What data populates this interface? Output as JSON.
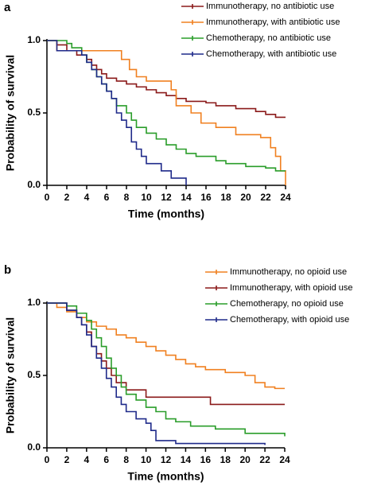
{
  "chart_data": [
    {
      "type": "step",
      "panel_label": "a",
      "xlabel": "Time  (months)",
      "ylabel": "Probability of survival",
      "xlim": [
        0,
        24
      ],
      "ylim": [
        0,
        1
      ],
      "xticks": [
        0,
        2,
        4,
        6,
        8,
        10,
        12,
        14,
        16,
        18,
        20,
        22,
        24
      ],
      "yticks": [
        {
          "value": 0,
          "label": "0.0"
        },
        0.5,
        {
          "value": 1,
          "label": "1.0"
        }
      ],
      "legend": "top-right",
      "series": [
        {
          "name": "Immunotherapy, no antibiotic use",
          "color": "#8b1a1a",
          "x": [
            0,
            1,
            2,
            3,
            4,
            4.5,
            5,
            5.5,
            6,
            7,
            8,
            9,
            10,
            11,
            12,
            13,
            14,
            16,
            17,
            19,
            21,
            22,
            23,
            24
          ],
          "values": [
            1,
            0.97,
            0.93,
            0.9,
            0.87,
            0.83,
            0.8,
            0.77,
            0.74,
            0.72,
            0.7,
            0.68,
            0.66,
            0.64,
            0.62,
            0.6,
            0.58,
            0.57,
            0.55,
            0.53,
            0.51,
            0.49,
            0.47,
            0.47
          ]
        },
        {
          "name": "Immunotherapy, with antibiotic use",
          "color": "#f08020",
          "x": [
            0,
            1,
            7.5,
            8.3,
            9,
            10,
            12.5,
            13,
            14.5,
            15.5,
            17,
            19,
            21.5,
            22.5,
            23,
            23.5,
            24
          ],
          "values": [
            1,
            0.93,
            0.87,
            0.8,
            0.75,
            0.72,
            0.66,
            0.55,
            0.5,
            0.43,
            0.4,
            0.35,
            0.33,
            0.26,
            0.2,
            0.1,
            0
          ]
        },
        {
          "name": "Chemotherapy, no antibiotic use",
          "color": "#2a9d2a",
          "x": [
            0,
            2,
            2.5,
            3.5,
            4,
            4.5,
            5,
            5.5,
            6,
            6.5,
            7,
            8,
            8.5,
            9,
            10,
            11,
            12,
            13,
            14,
            15,
            17,
            18,
            20,
            22,
            23,
            24
          ],
          "values": [
            1,
            0.98,
            0.95,
            0.9,
            0.85,
            0.8,
            0.75,
            0.7,
            0.65,
            0.6,
            0.55,
            0.5,
            0.45,
            0.4,
            0.36,
            0.32,
            0.28,
            0.25,
            0.22,
            0.2,
            0.17,
            0.15,
            0.13,
            0.12,
            0.1,
            0.1
          ]
        },
        {
          "name": "Chemotherapy, with antibiotic use",
          "color": "#1f2a8a",
          "x": [
            0,
            1,
            3.5,
            4,
            4.5,
            5,
            5.5,
            6,
            6.5,
            7,
            7.5,
            8,
            8.5,
            9,
            9.5,
            10,
            11.5,
            12.5,
            14
          ],
          "values": [
            1,
            0.93,
            0.9,
            0.85,
            0.8,
            0.75,
            0.7,
            0.65,
            0.6,
            0.5,
            0.45,
            0.4,
            0.3,
            0.25,
            0.2,
            0.15,
            0.1,
            0.05,
            0
          ]
        }
      ]
    },
    {
      "type": "step",
      "panel_label": "b",
      "xlabel": "Time  (months)",
      "ylabel": "Probability of survival",
      "xlim": [
        0,
        24
      ],
      "ylim": [
        0,
        1
      ],
      "xticks": [
        0,
        2,
        4,
        6,
        8,
        10,
        12,
        14,
        16,
        18,
        20,
        22,
        24
      ],
      "yticks": [
        {
          "value": 0,
          "label": "0.0"
        },
        0.5,
        {
          "value": 1,
          "label": "1.0"
        }
      ],
      "legend": "top-right",
      "series": [
        {
          "name": "Immunotherapy,  no opioid use",
          "color": "#f08020",
          "x": [
            0,
            1,
            2,
            3,
            4,
            5,
            6,
            7,
            8,
            9,
            10,
            11,
            12,
            13,
            14,
            15,
            16,
            18,
            20,
            21,
            22,
            23,
            24
          ],
          "values": [
            1,
            0.97,
            0.94,
            0.9,
            0.87,
            0.84,
            0.82,
            0.78,
            0.76,
            0.73,
            0.7,
            0.67,
            0.64,
            0.61,
            0.58,
            0.56,
            0.54,
            0.52,
            0.5,
            0.45,
            0.42,
            0.41,
            0.41
          ]
        },
        {
          "name": "Immunotherapy, with opioid use",
          "color": "#8b1a1a",
          "x": [
            0,
            2,
            3,
            3.5,
            4,
            4.5,
            5,
            5.5,
            6,
            6.5,
            7,
            8,
            10,
            16.5,
            24
          ],
          "values": [
            1,
            0.95,
            0.9,
            0.85,
            0.8,
            0.7,
            0.65,
            0.6,
            0.55,
            0.5,
            0.45,
            0.4,
            0.35,
            0.3,
            0.3
          ]
        },
        {
          "name": "Chemotherapy, no opioid use",
          "color": "#2a9d2a",
          "x": [
            0,
            2,
            3,
            4,
            4.5,
            5,
            5.5,
            6,
            6.5,
            7,
            7.5,
            8,
            9,
            10,
            11,
            12,
            13,
            14.5,
            17,
            20,
            24
          ],
          "values": [
            1,
            0.98,
            0.93,
            0.88,
            0.82,
            0.76,
            0.7,
            0.62,
            0.55,
            0.5,
            0.42,
            0.37,
            0.33,
            0.28,
            0.25,
            0.2,
            0.18,
            0.15,
            0.13,
            0.1,
            0.08
          ]
        },
        {
          "name": "Chemotherapy, with opioid use",
          "color": "#1f2a8a",
          "x": [
            0,
            2,
            3,
            3.5,
            4,
            4.5,
            5,
            5.5,
            6,
            6.5,
            7,
            7.5,
            8,
            9,
            10,
            10.5,
            11,
            13,
            22
          ],
          "values": [
            1,
            0.95,
            0.9,
            0.85,
            0.78,
            0.7,
            0.62,
            0.55,
            0.48,
            0.42,
            0.35,
            0.3,
            0.25,
            0.2,
            0.17,
            0.12,
            0.05,
            0.03,
            0.02
          ]
        }
      ]
    }
  ]
}
